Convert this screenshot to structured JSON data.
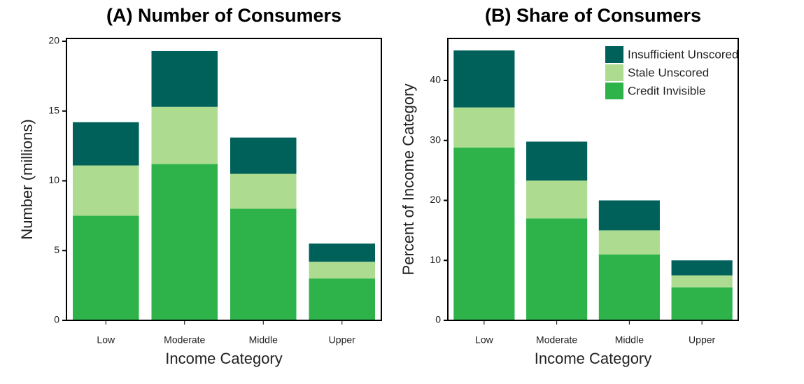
{
  "chart_data": [
    {
      "type": "stacked-bar",
      "title": "(A) Number of Consumers",
      "x_label": "Income Category",
      "y_label": "Number (millions)",
      "categories": [
        "Low",
        "Moderate",
        "Middle",
        "Upper"
      ],
      "series": [
        {
          "name": "Credit Invisible",
          "color": "#2db34a",
          "values": [
            7.5,
            11.2,
            8.0,
            3.0
          ]
        },
        {
          "name": "Stale Unscored",
          "color": "#addc91",
          "values": [
            3.6,
            4.1,
            2.5,
            1.2
          ]
        },
        {
          "name": "Insufficient Unscored",
          "color": "#00605a",
          "values": [
            3.1,
            4.0,
            2.6,
            1.3
          ]
        }
      ],
      "ylim": [
        0,
        20.2
      ],
      "yticks": [
        0,
        5,
        10,
        15,
        20
      ],
      "legend": "none"
    },
    {
      "type": "stacked-bar",
      "title": "(B) Share of Consumers",
      "x_label": "Income Category",
      "y_label": "Percent of Income Category",
      "categories": [
        "Low",
        "Moderate",
        "Middle",
        "Upper"
      ],
      "series": [
        {
          "name": "Credit Invisible",
          "color": "#2db34a",
          "values": [
            28.8,
            17,
            11,
            5.5
          ]
        },
        {
          "name": "Stale Unscored",
          "color": "#addc91",
          "values": [
            6.7,
            6.3,
            4,
            2
          ]
        },
        {
          "name": "Insufficient Unscored",
          "color": "#00605a",
          "values": [
            9.5,
            6.5,
            5,
            2.5
          ]
        }
      ],
      "ylim": [
        0,
        47
      ],
      "yticks": [
        0,
        10,
        20,
        30,
        40
      ],
      "legend": "top-right"
    }
  ]
}
